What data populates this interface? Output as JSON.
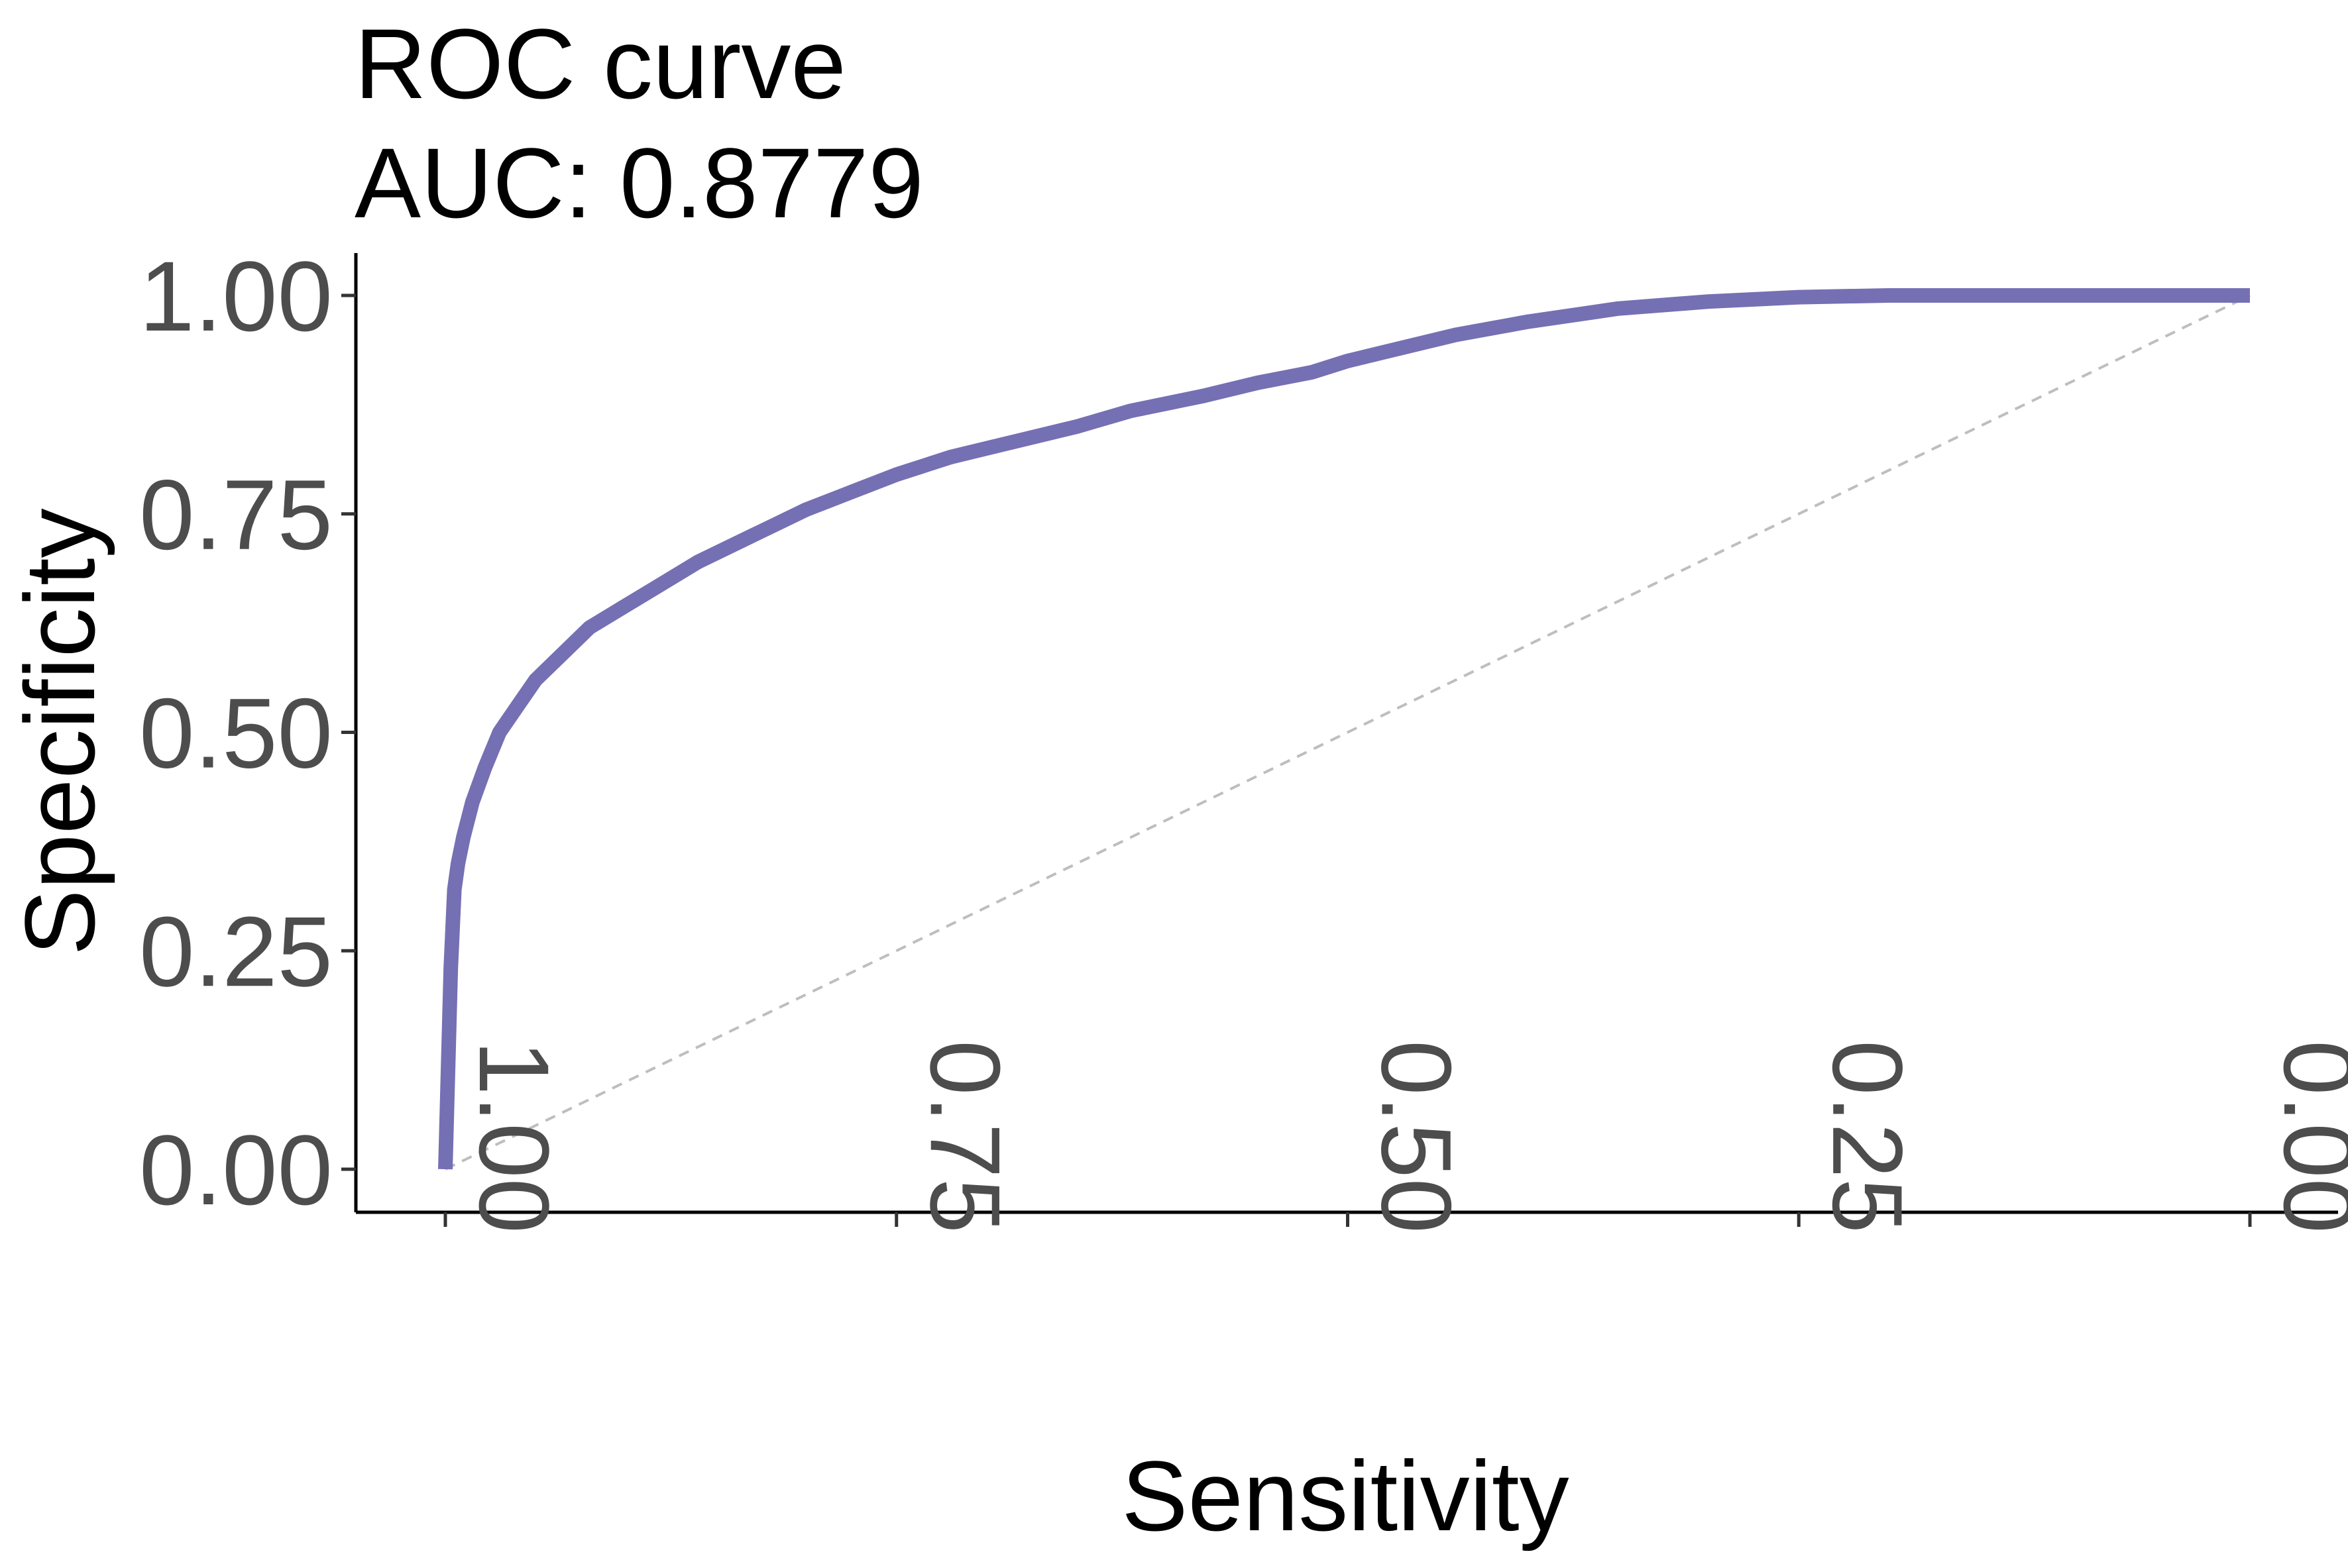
{
  "chart_data": {
    "type": "line",
    "title": "ROC curve",
    "subtitle": "AUC: 0.8779",
    "xlabel": "Sensitivity",
    "ylabel": "Specificity",
    "xlim": [
      1.0,
      0.0
    ],
    "ylim": [
      0.0,
      1.0
    ],
    "x_reversed": true,
    "x_ticks": [
      "1.00",
      "0.75",
      "0.50",
      "0.25",
      "0.00"
    ],
    "y_ticks": [
      "0.00",
      "0.25",
      "0.50",
      "0.75",
      "1.00"
    ],
    "grid": false,
    "legend": "none",
    "series": [
      {
        "color": "#7570b3",
        "x": [
          1.0,
          0.997,
          0.995,
          0.993,
          0.99,
          0.985,
          0.978,
          0.97,
          0.96,
          0.95,
          0.935,
          0.92,
          0.9,
          0.88,
          0.86,
          0.83,
          0.8,
          0.775,
          0.75,
          0.72,
          0.69,
          0.65,
          0.62,
          0.58,
          0.55,
          0.52,
          0.5,
          0.48,
          0.44,
          0.4,
          0.35,
          0.3,
          0.25,
          0.2,
          0.15,
          0.1,
          0.05,
          0.0
        ],
        "y": [
          0.0,
          0.23,
          0.32,
          0.35,
          0.38,
          0.42,
          0.46,
          0.5,
          0.53,
          0.56,
          0.59,
          0.62,
          0.645,
          0.67,
          0.695,
          0.725,
          0.755,
          0.775,
          0.795,
          0.815,
          0.83,
          0.85,
          0.868,
          0.885,
          0.9,
          0.912,
          0.925,
          0.935,
          0.955,
          0.97,
          0.985,
          0.993,
          0.998,
          1.0,
          1.0,
          1.0,
          1.0,
          1.0
        ]
      }
    ],
    "reference_line": {
      "from": [
        1.0,
        0.0
      ],
      "to": [
        0.0,
        1.0
      ],
      "color": "#bebebe",
      "style": "dashed"
    }
  }
}
